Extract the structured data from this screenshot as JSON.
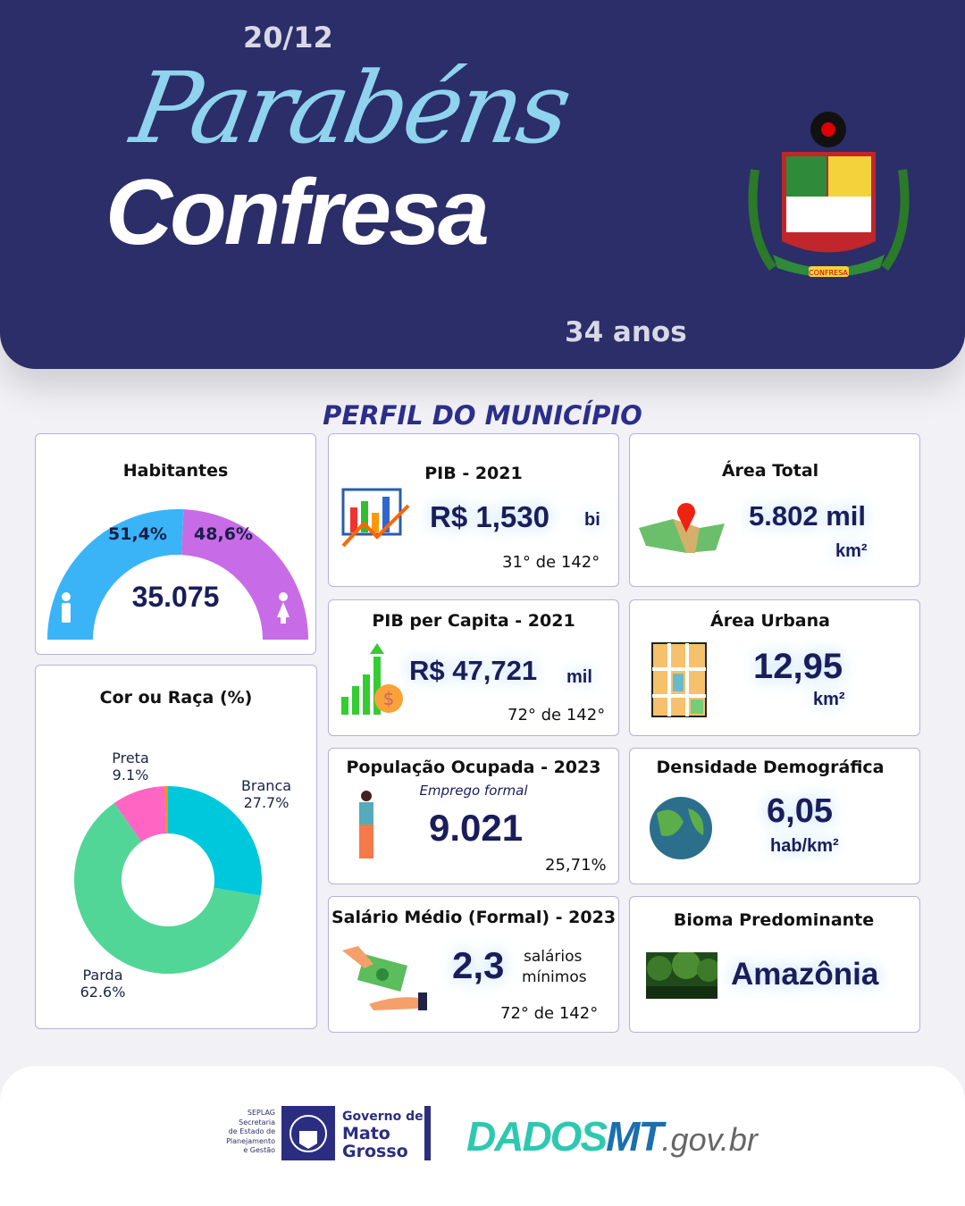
{
  "header": {
    "script_title": "Parabéns",
    "date": "20/12",
    "city": "Confresa",
    "years": "34 anos",
    "crest_text": "CONFRESA"
  },
  "section_title": "PERFIL DO MUNICÍPIO",
  "habitantes": {
    "title": "Habitantes",
    "total": "35.075",
    "male_pct": "51,4%",
    "female_pct": "48,6%",
    "male_value": 51.4,
    "female_value": 48.6,
    "male_color": "#3ab4f7",
    "female_color": "#c76ce6"
  },
  "pib": {
    "title": "PIB - 2021",
    "value": "R$ 1,530",
    "unit": "bi",
    "rank": "31°  de 142°"
  },
  "area_total": {
    "title": "Área Total",
    "value": "5.802 mil",
    "unit": "km²"
  },
  "pib_capita": {
    "title": "PIB per Capita - 2021",
    "value": "R$ 47,721",
    "unit": "mil",
    "rank": "72° de 142°"
  },
  "area_urbana": {
    "title": "Área Urbana",
    "value": "12,95",
    "unit": "km²"
  },
  "populacao": {
    "title": "População  Ocupada - 2023",
    "subtitle": "Emprego formal",
    "value": "9.021",
    "pct": "25,71%"
  },
  "densidade": {
    "title": "Densidade Demográfica",
    "value": "6,05",
    "unit": "hab/km²"
  },
  "salario": {
    "title": "Salário Médio (Formal) - 2023",
    "value": "2,3",
    "unit1": "salários",
    "unit2": "mínimos",
    "rank": "72° de 142°"
  },
  "bioma": {
    "title": "Bioma Predominante",
    "value": "Amazônia"
  },
  "chart_data": {
    "type": "pie",
    "title": "Cor ou Raça (%)",
    "donut": true,
    "slices": [
      {
        "label": "Branca",
        "pct_label": "27.7%",
        "value": 27.7,
        "color": "#00c8dc"
      },
      {
        "label": "Parda",
        "pct_label": "62.6%",
        "value": 62.6,
        "color": "#52d697"
      },
      {
        "label": "Preta",
        "pct_label": "9.1%",
        "value": 9.1,
        "color": "#ff66c4"
      },
      {
        "label": "",
        "pct_label": "",
        "value": 0.6,
        "color": "#ff8c1a"
      }
    ]
  },
  "footer": {
    "seplag": [
      "SEPLAG",
      "Secretaria",
      "de Estado de",
      "Planejamento",
      "e Gestão"
    ],
    "gov1": "Governo de",
    "gov2": "Mato",
    "gov3": "Grosso",
    "dados": "DADOS",
    "mt": "MT",
    "gov_br": ".gov.br"
  }
}
